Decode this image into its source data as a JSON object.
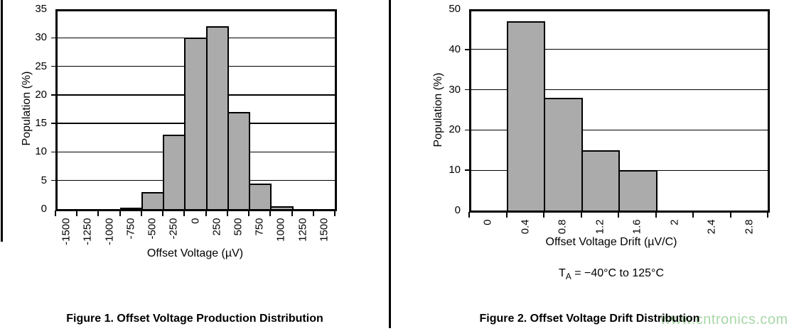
{
  "page": {
    "background": "#ffffff"
  },
  "watermark": {
    "text": "www.cntronics.com",
    "color": "#9fd39f"
  },
  "figures": [
    {
      "caption": "Figure 1. Offset Voltage Production Distribution"
    },
    {
      "caption": "Figure 2. Offset Voltage Drift Distribution",
      "annotation": {
        "t": "T",
        "sub": "A",
        "rest": " = −40°C to 125°C"
      }
    }
  ],
  "chart_data": [
    {
      "type": "bar",
      "title": "Offset Voltage Production Distribution",
      "xlabel": "Offset Voltage (µV)",
      "ylabel": "Population (%)",
      "categories": [
        "-1500",
        "-1250",
        "-1000",
        "-750",
        "-500",
        "-250",
        "0",
        "250",
        "500",
        "750",
        "1000",
        "1250",
        "1500"
      ],
      "values": [
        0,
        0,
        0,
        0.3,
        3,
        13,
        30,
        32,
        17,
        4.5,
        0.5,
        0,
        0
      ],
      "ylim": [
        0,
        35
      ],
      "ytick_step": 5,
      "grid": true,
      "bar_color": "#ababab",
      "bar_border_color": "#000000",
      "legend": "none"
    },
    {
      "type": "bar",
      "title": "Offset Voltage Drift Distribution",
      "xlabel": "Offset Voltage Drift (µV/C)",
      "ylabel": "Population (%)",
      "categories": [
        "0",
        "0.4",
        "0.8",
        "1.2",
        "1.6",
        "2",
        "2.4",
        "2.8"
      ],
      "values": [
        0,
        47,
        28,
        15,
        10,
        0,
        0,
        0
      ],
      "ylim": [
        0,
        50
      ],
      "ytick_step": 10,
      "grid": true,
      "bar_color": "#ababab",
      "bar_border_color": "#000000",
      "legend": "none"
    }
  ]
}
